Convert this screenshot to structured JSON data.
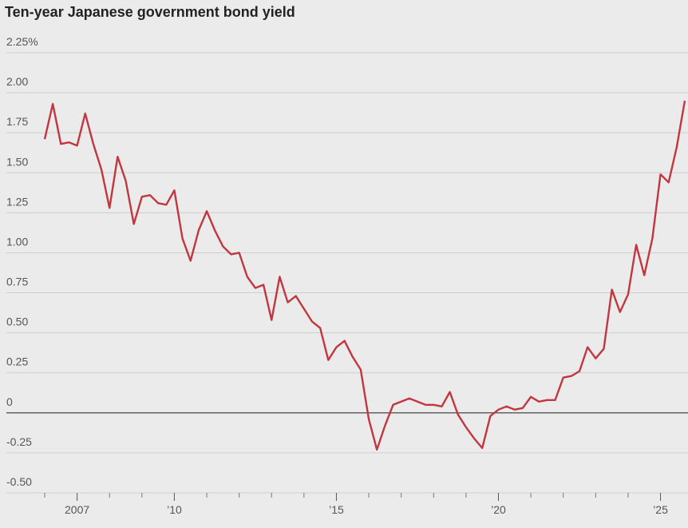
{
  "chart_data": {
    "type": "line",
    "title": "Ten-year Japanese government bond yield",
    "x": [
      2006,
      2006.25,
      2006.5,
      2006.75,
      2007,
      2007.25,
      2007.5,
      2007.75,
      2008,
      2008.25,
      2008.5,
      2008.75,
      2009,
      2009.25,
      2009.5,
      2009.75,
      2010,
      2010.25,
      2010.5,
      2010.75,
      2011,
      2011.25,
      2011.5,
      2011.75,
      2012,
      2012.25,
      2012.5,
      2012.75,
      2013,
      2013.25,
      2013.5,
      2013.75,
      2014,
      2014.25,
      2014.5,
      2014.75,
      2015,
      2015.25,
      2015.5,
      2015.75,
      2016,
      2016.25,
      2016.5,
      2016.75,
      2017,
      2017.25,
      2017.5,
      2017.75,
      2018,
      2018.25,
      2018.5,
      2018.75,
      2019,
      2019.25,
      2019.5,
      2019.75,
      2020,
      2020.25,
      2020.5,
      2020.75,
      2021,
      2021.25,
      2021.5,
      2021.75,
      2022,
      2022.25,
      2022.5,
      2022.75,
      2023,
      2023.25,
      2023.5,
      2023.75,
      2024,
      2024.25,
      2024.5,
      2024.75,
      2025,
      2025.25,
      2025.5,
      2025.75
    ],
    "series": [
      {
        "color": "#c0373f",
        "values": [
          1.71,
          1.93,
          1.68,
          1.69,
          1.67,
          1.87,
          1.68,
          1.52,
          1.28,
          1.6,
          1.45,
          1.18,
          1.35,
          1.36,
          1.31,
          1.3,
          1.39,
          1.09,
          0.95,
          1.14,
          1.26,
          1.14,
          1.04,
          0.99,
          1.0,
          0.85,
          0.78,
          0.8,
          0.58,
          0.85,
          0.69,
          0.73,
          0.65,
          0.57,
          0.53,
          0.33,
          0.41,
          0.45,
          0.35,
          0.27,
          -0.04,
          -0.23,
          -0.08,
          0.05,
          0.07,
          0.09,
          0.07,
          0.05,
          0.05,
          0.04,
          0.13,
          -0.01,
          -0.09,
          -0.16,
          -0.22,
          -0.02,
          0.02,
          0.04,
          0.02,
          0.03,
          0.1,
          0.07,
          0.08,
          0.08,
          0.22,
          0.23,
          0.26,
          0.41,
          0.34,
          0.4,
          0.77,
          0.63,
          0.74,
          1.05,
          0.86,
          1.09,
          1.49,
          1.44,
          1.66,
          1.95
        ]
      }
    ],
    "xlim": [
      2006,
      2025.75
    ],
    "xticks": [
      2007,
      {
        "value": 2010,
        "label": "’10"
      },
      {
        "value": 2015,
        "label": "’15"
      },
      {
        "value": 2020,
        "label": "’20"
      },
      {
        "value": 2025,
        "label": "’25"
      }
    ],
    "xminorticks": [
      2006,
      2008,
      2009,
      2011,
      2012,
      2013,
      2014,
      2016,
      2017,
      2018,
      2019,
      2021,
      2022,
      2023,
      2024
    ],
    "ylim": [
      -0.5,
      2.25
    ],
    "yticks": [
      {
        "value": -0.5,
        "label": "-0.50"
      },
      -0.25,
      0,
      0.25,
      {
        "value": 0.5,
        "label": "0.50"
      },
      0.75,
      {
        "value": 1,
        "label": "1.00"
      },
      1.25,
      {
        "value": 1.5,
        "label": "1.50"
      },
      1.75,
      {
        "value": 2,
        "label": "2.00"
      },
      {
        "value": 2.25,
        "label": "2.25%"
      }
    ],
    "grid": true
  }
}
